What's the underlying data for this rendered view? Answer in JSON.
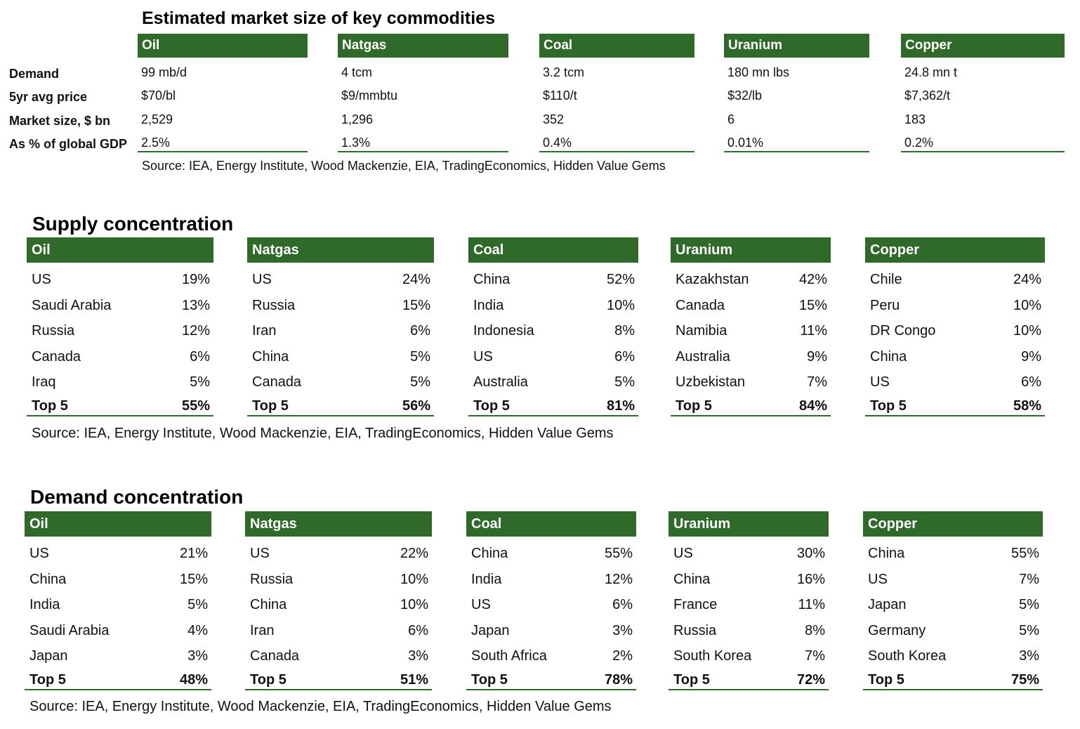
{
  "market": {
    "title": "Estimated market size of key commodities",
    "row_labels": [
      "Demand",
      "5yr avg price",
      "Market size, $ bn",
      "As % of global GDP"
    ],
    "columns": [
      {
        "name": "Oil",
        "values": [
          "99 mb/d",
          "$70/bl",
          "2,529",
          "2.5%"
        ]
      },
      {
        "name": "Natgas",
        "values": [
          "4 tcm",
          "$9/mmbtu",
          "1,296",
          "1.3%"
        ]
      },
      {
        "name": "Coal",
        "values": [
          "3.2 tcm",
          "$110/t",
          "352",
          "0.4%"
        ]
      },
      {
        "name": "Uranium",
        "values": [
          "180 mn lbs",
          "$32/lb",
          "6",
          "0.01%"
        ]
      },
      {
        "name": "Copper",
        "values": [
          "24.8 mn t",
          "$7,362/t",
          "183",
          "0.2%"
        ]
      }
    ],
    "source": "Source: IEA, Energy Institute, Wood Mackenzie, EIA, TradingEconomics, Hidden Value Gems"
  },
  "supply": {
    "title": "Supply concentration",
    "total_label": "Top 5",
    "columns": [
      {
        "name": "Oil",
        "rows": [
          [
            "US",
            "19%"
          ],
          [
            "Saudi Arabia",
            "13%"
          ],
          [
            "Russia",
            "12%"
          ],
          [
            "Canada",
            "6%"
          ],
          [
            "Iraq",
            "5%"
          ]
        ],
        "total": "55%"
      },
      {
        "name": "Natgas",
        "rows": [
          [
            "US",
            "24%"
          ],
          [
            "Russia",
            "15%"
          ],
          [
            "Iran",
            "6%"
          ],
          [
            "China",
            "5%"
          ],
          [
            "Canada",
            "5%"
          ]
        ],
        "total": "56%"
      },
      {
        "name": "Coal",
        "rows": [
          [
            "China",
            "52%"
          ],
          [
            "India",
            "10%"
          ],
          [
            "Indonesia",
            "8%"
          ],
          [
            "US",
            "6%"
          ],
          [
            "Australia",
            "5%"
          ]
        ],
        "total": "81%"
      },
      {
        "name": "Uranium",
        "rows": [
          [
            "Kazakhstan",
            "42%"
          ],
          [
            "Canada",
            "15%"
          ],
          [
            "Namibia",
            "11%"
          ],
          [
            "Australia",
            "9%"
          ],
          [
            "Uzbekistan",
            "7%"
          ]
        ],
        "total": "84%"
      },
      {
        "name": "Copper",
        "rows": [
          [
            "Chile",
            "24%"
          ],
          [
            "Peru",
            "10%"
          ],
          [
            "DR Congo",
            "10%"
          ],
          [
            "China",
            "9%"
          ],
          [
            "US",
            "6%"
          ]
        ],
        "total": "58%"
      }
    ],
    "source": "Source: IEA, Energy Institute, Wood Mackenzie, EIA, TradingEconomics, Hidden Value Gems"
  },
  "demand": {
    "title": "Demand concentration",
    "total_label": "Top 5",
    "columns": [
      {
        "name": "Oil",
        "rows": [
          [
            "US",
            "21%"
          ],
          [
            "China",
            "15%"
          ],
          [
            "India",
            "5%"
          ],
          [
            "Saudi Arabia",
            "4%"
          ],
          [
            "Japan",
            "3%"
          ]
        ],
        "total": "48%"
      },
      {
        "name": "Natgas",
        "rows": [
          [
            "US",
            "22%"
          ],
          [
            "Russia",
            "10%"
          ],
          [
            "China",
            "10%"
          ],
          [
            "Iran",
            "6%"
          ],
          [
            "Canada",
            "3%"
          ]
        ],
        "total": "51%"
      },
      {
        "name": "Coal",
        "rows": [
          [
            "China",
            "55%"
          ],
          [
            "India",
            "12%"
          ],
          [
            "US",
            "6%"
          ],
          [
            "Japan",
            "3%"
          ],
          [
            "South Africa",
            "2%"
          ]
        ],
        "total": "78%"
      },
      {
        "name": "Uranium",
        "rows": [
          [
            "US",
            "30%"
          ],
          [
            "China",
            "16%"
          ],
          [
            "France",
            "11%"
          ],
          [
            "Russia",
            "8%"
          ],
          [
            "South Korea",
            "7%"
          ]
        ],
        "total": "72%"
      },
      {
        "name": "Copper",
        "rows": [
          [
            "China",
            "55%"
          ],
          [
            "US",
            "7%"
          ],
          [
            "Japan",
            "5%"
          ],
          [
            "Germany",
            "5%"
          ],
          [
            "South Korea",
            "3%"
          ]
        ],
        "total": "75%"
      }
    ],
    "source": "Source: IEA, Energy Institute, Wood Mackenzie, EIA, TradingEconomics, Hidden Value Gems"
  },
  "colors": {
    "header_green": "#2f6a2a",
    "header_text": "#ffffff"
  }
}
